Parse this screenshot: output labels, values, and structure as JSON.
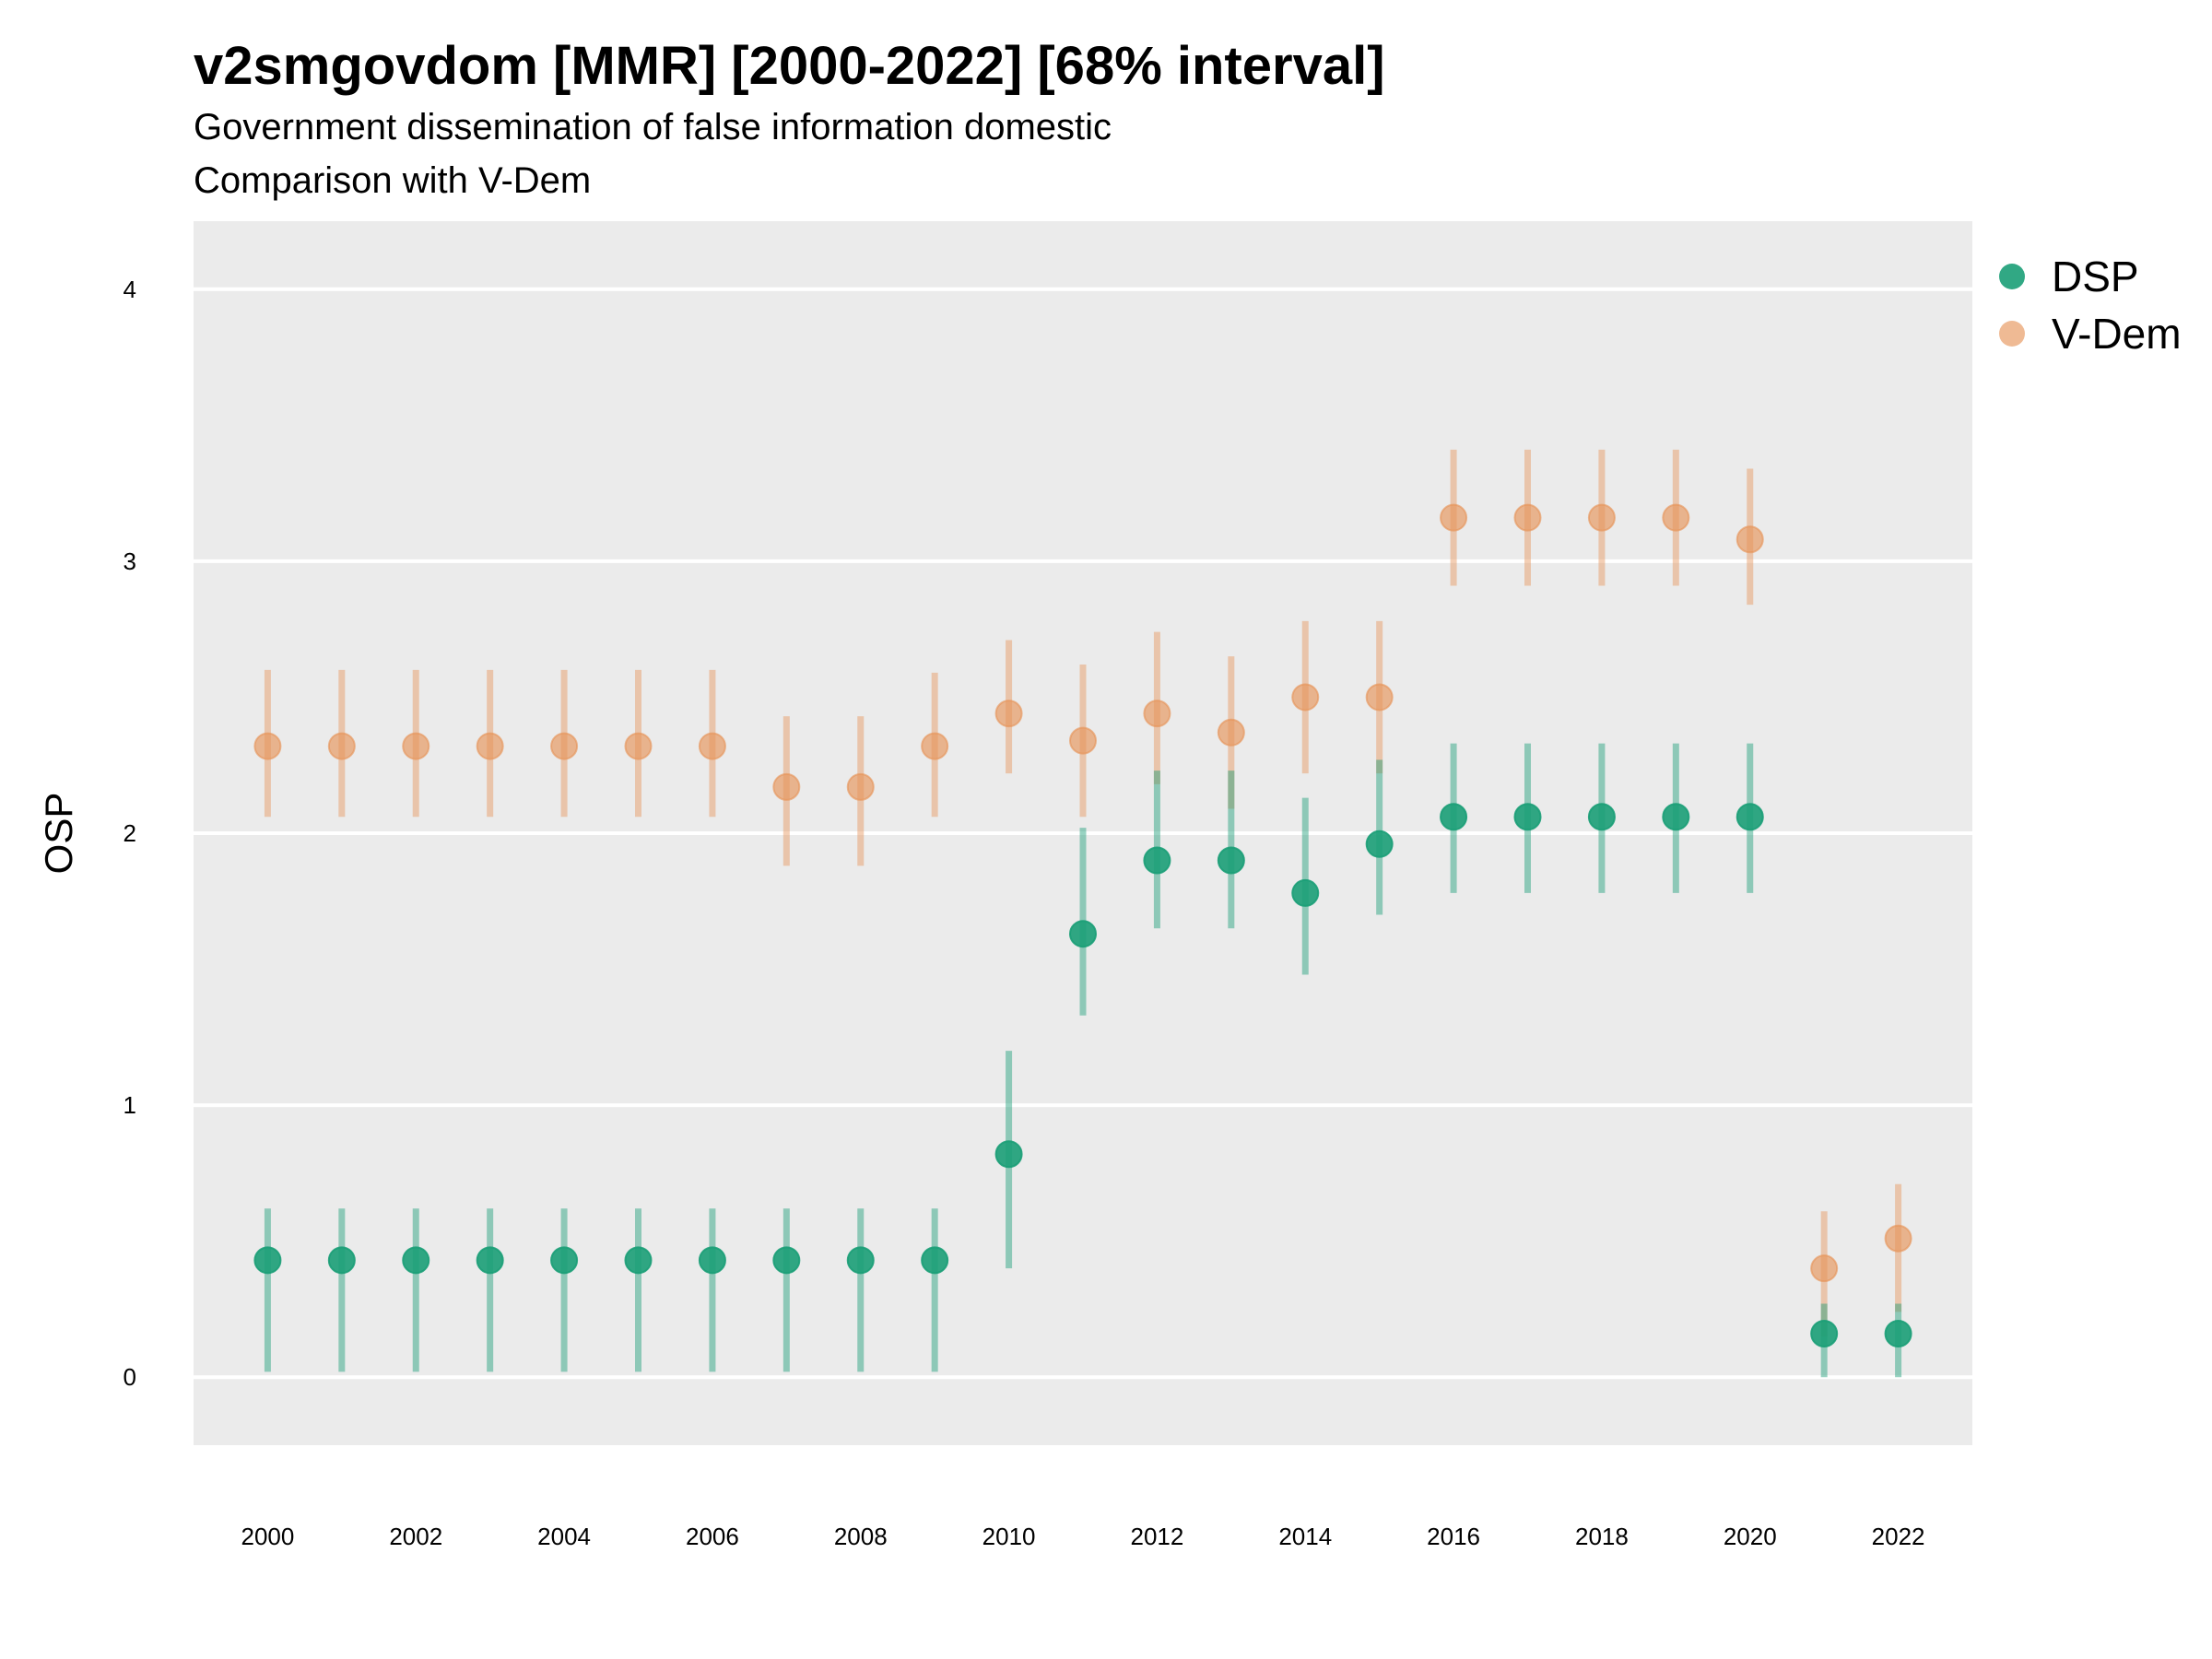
{
  "title": "v2smgovdom [MMR] [2000-2022] [68% interval]",
  "subtitle_line1": "Government dissemination of false information domestic",
  "subtitle_line2": "Comparison with V-Dem",
  "chart_data": {
    "type": "scatter",
    "title": "v2smgovdom [MMR] [2000-2022] [68% interval]",
    "xlabel": "",
    "ylabel": "OSP",
    "ylim": [
      -0.25,
      4.25
    ],
    "yticks": [
      0,
      1,
      2,
      3,
      4
    ],
    "xticks": [
      2000,
      2002,
      2004,
      2006,
      2008,
      2010,
      2012,
      2014,
      2016,
      2018,
      2020,
      2022
    ],
    "grid": true,
    "legend_position": "right",
    "x": [
      2000,
      2001,
      2002,
      2003,
      2004,
      2005,
      2006,
      2007,
      2008,
      2009,
      2010,
      2011,
      2012,
      2013,
      2014,
      2015,
      2016,
      2017,
      2018,
      2019,
      2020,
      2021,
      2022
    ],
    "series": [
      {
        "name": "DSP",
        "color": "#1b9e77",
        "values": [
          0.43,
          0.43,
          0.43,
          0.43,
          0.43,
          0.43,
          0.43,
          0.43,
          0.43,
          0.43,
          0.82,
          1.63,
          1.9,
          1.9,
          1.78,
          1.96,
          2.06,
          2.06,
          2.06,
          2.06,
          2.06,
          0.16,
          0.16
        ],
        "lower": [
          0.02,
          0.02,
          0.02,
          0.02,
          0.02,
          0.02,
          0.02,
          0.02,
          0.02,
          0.02,
          0.4,
          1.33,
          1.65,
          1.65,
          1.48,
          1.7,
          1.78,
          1.78,
          1.78,
          1.78,
          1.78,
          0.0,
          0.0
        ],
        "upper": [
          0.62,
          0.62,
          0.62,
          0.62,
          0.62,
          0.62,
          0.62,
          0.62,
          0.62,
          0.62,
          1.2,
          2.02,
          2.23,
          2.23,
          2.13,
          2.27,
          2.33,
          2.33,
          2.33,
          2.33,
          2.33,
          0.27,
          0.27
        ]
      },
      {
        "name": "V-Dem",
        "color": "#e6955a",
        "values": [
          2.32,
          2.32,
          2.32,
          2.32,
          2.32,
          2.32,
          2.32,
          2.17,
          2.17,
          2.32,
          2.44,
          2.34,
          2.44,
          2.37,
          2.5,
          2.5,
          3.16,
          3.16,
          3.16,
          3.16,
          3.08,
          0.4,
          0.51
        ],
        "lower": [
          2.06,
          2.06,
          2.06,
          2.06,
          2.06,
          2.06,
          2.06,
          1.88,
          1.88,
          2.06,
          2.22,
          2.06,
          2.18,
          2.09,
          2.22,
          2.22,
          2.91,
          2.91,
          2.91,
          2.91,
          2.84,
          0.15,
          0.24
        ],
        "upper": [
          2.6,
          2.6,
          2.6,
          2.6,
          2.6,
          2.6,
          2.6,
          2.43,
          2.43,
          2.59,
          2.71,
          2.62,
          2.74,
          2.65,
          2.78,
          2.78,
          3.41,
          3.41,
          3.41,
          3.41,
          3.34,
          0.61,
          0.71
        ]
      }
    ]
  }
}
